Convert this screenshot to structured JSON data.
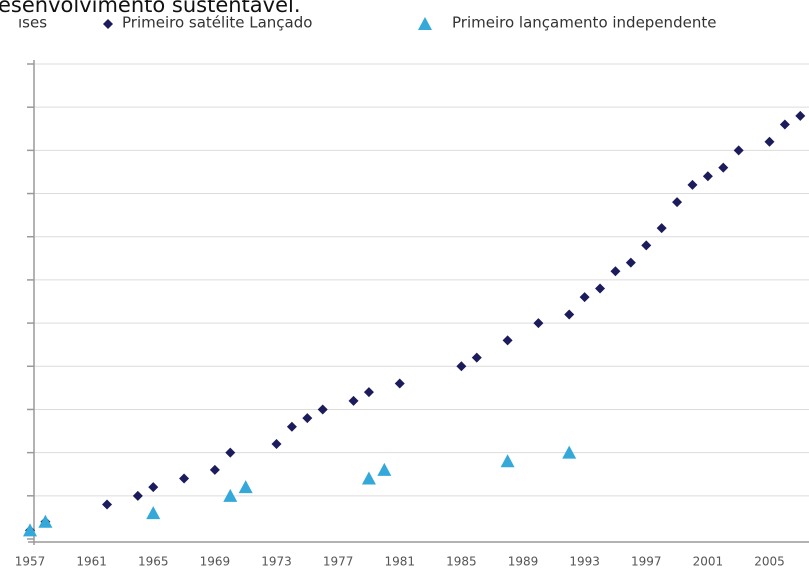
{
  "chart_data": {
    "type": "scatter",
    "title": "esenvolvimento sustentável.",
    "legend_partial": "ıses",
    "series": [
      {
        "name": "Primeiro satélite Lançado",
        "color": "#1c1c5c",
        "marker": "diamond",
        "x": [
          1957,
          1958,
          1962,
          1964,
          1965,
          1967,
          1969,
          1970,
          1973,
          1974,
          1975,
          1976,
          1978,
          1979,
          1981,
          1985,
          1986,
          1988,
          1990,
          1992,
          1993,
          1994,
          1995,
          1996,
          1997,
          1998,
          1999,
          2000,
          2001,
          2002,
          2003,
          2005,
          2006,
          2007
        ],
        "values": [
          1,
          2,
          4,
          5,
          6,
          7,
          8,
          10,
          11,
          13,
          14,
          15,
          16,
          17,
          18,
          20,
          21,
          23,
          25,
          26,
          28,
          29,
          31,
          32,
          34,
          36,
          39,
          41,
          42,
          43,
          45,
          46,
          48,
          49
        ]
      },
      {
        "name": "Primeiro lançamento independente",
        "color": "#35a8da",
        "marker": "triangle",
        "x": [
          1957,
          1958,
          1965,
          1970,
          1971,
          1979,
          1980,
          1988,
          1992
        ],
        "values": [
          1,
          2,
          3,
          5,
          6,
          7,
          8,
          9,
          10
        ]
      }
    ],
    "xlim": [
      1957,
      2007.5
    ],
    "xticks": [
      1957,
      1961,
      1965,
      1969,
      1973,
      1977,
      1981,
      1985,
      1989,
      1993,
      1997,
      2001,
      2005
    ],
    "ylim": [
      0,
      55
    ],
    "yticks": [
      0,
      5,
      10,
      15,
      20,
      25,
      30,
      35,
      40,
      45,
      50,
      55
    ],
    "grid": true
  }
}
